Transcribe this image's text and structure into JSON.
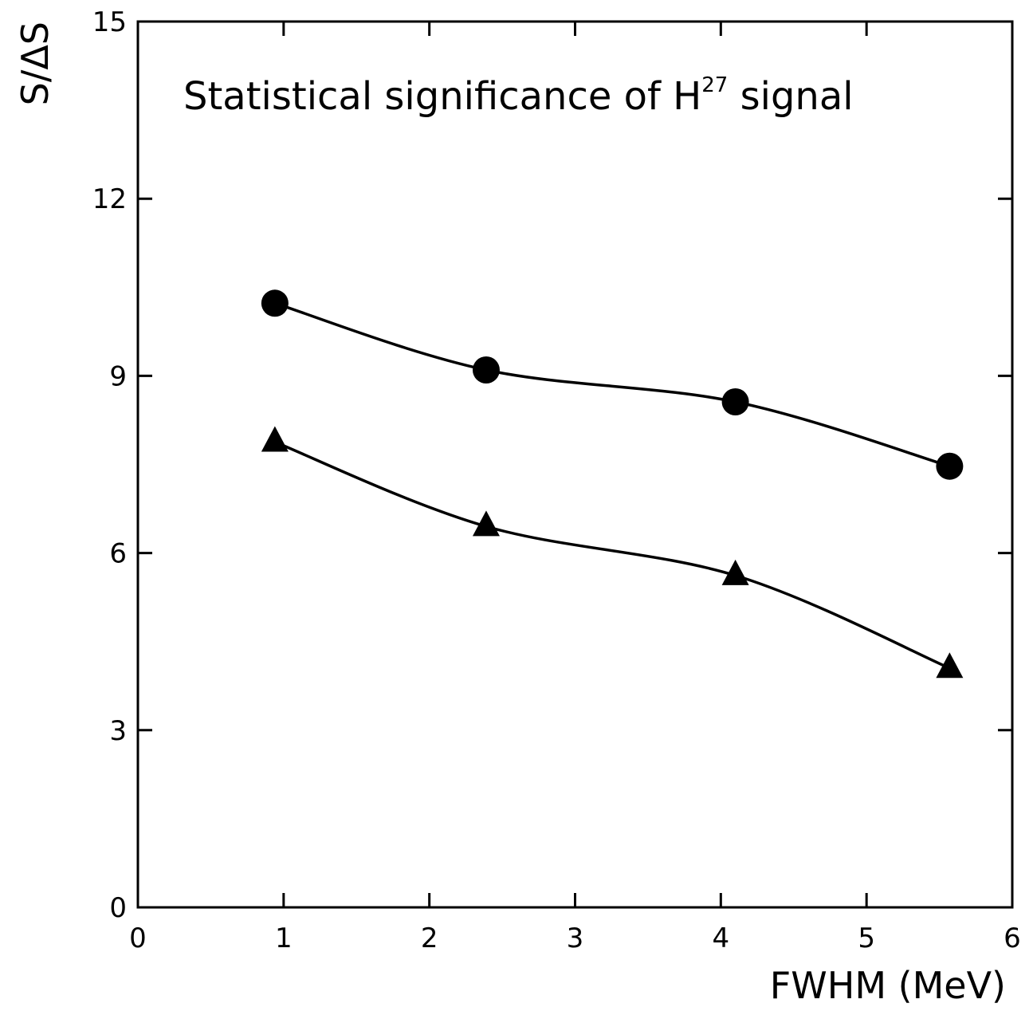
{
  "chart_data": {
    "type": "line",
    "title": "",
    "annotation": {
      "text": "Statistical significance of H",
      "superscript": "27",
      "suffix": " signal"
    },
    "xlabel": "FWHM (MeV)",
    "ylabel": "S/ΔS",
    "xlim": [
      0,
      6
    ],
    "ylim": [
      0,
      15
    ],
    "xticks": [
      0,
      1,
      2,
      3,
      4,
      5,
      6
    ],
    "yticks": [
      0,
      3,
      6,
      9,
      12,
      15
    ],
    "grid": false,
    "series": [
      {
        "marker": "circle",
        "x": [
          0.94,
          2.39,
          4.1,
          5.57
        ],
        "y": [
          10.23,
          9.1,
          8.56,
          7.47
        ]
      },
      {
        "marker": "triangle",
        "x": [
          0.94,
          2.39,
          4.1,
          5.57
        ],
        "y": [
          7.88,
          6.45,
          5.62,
          4.05
        ]
      }
    ]
  }
}
